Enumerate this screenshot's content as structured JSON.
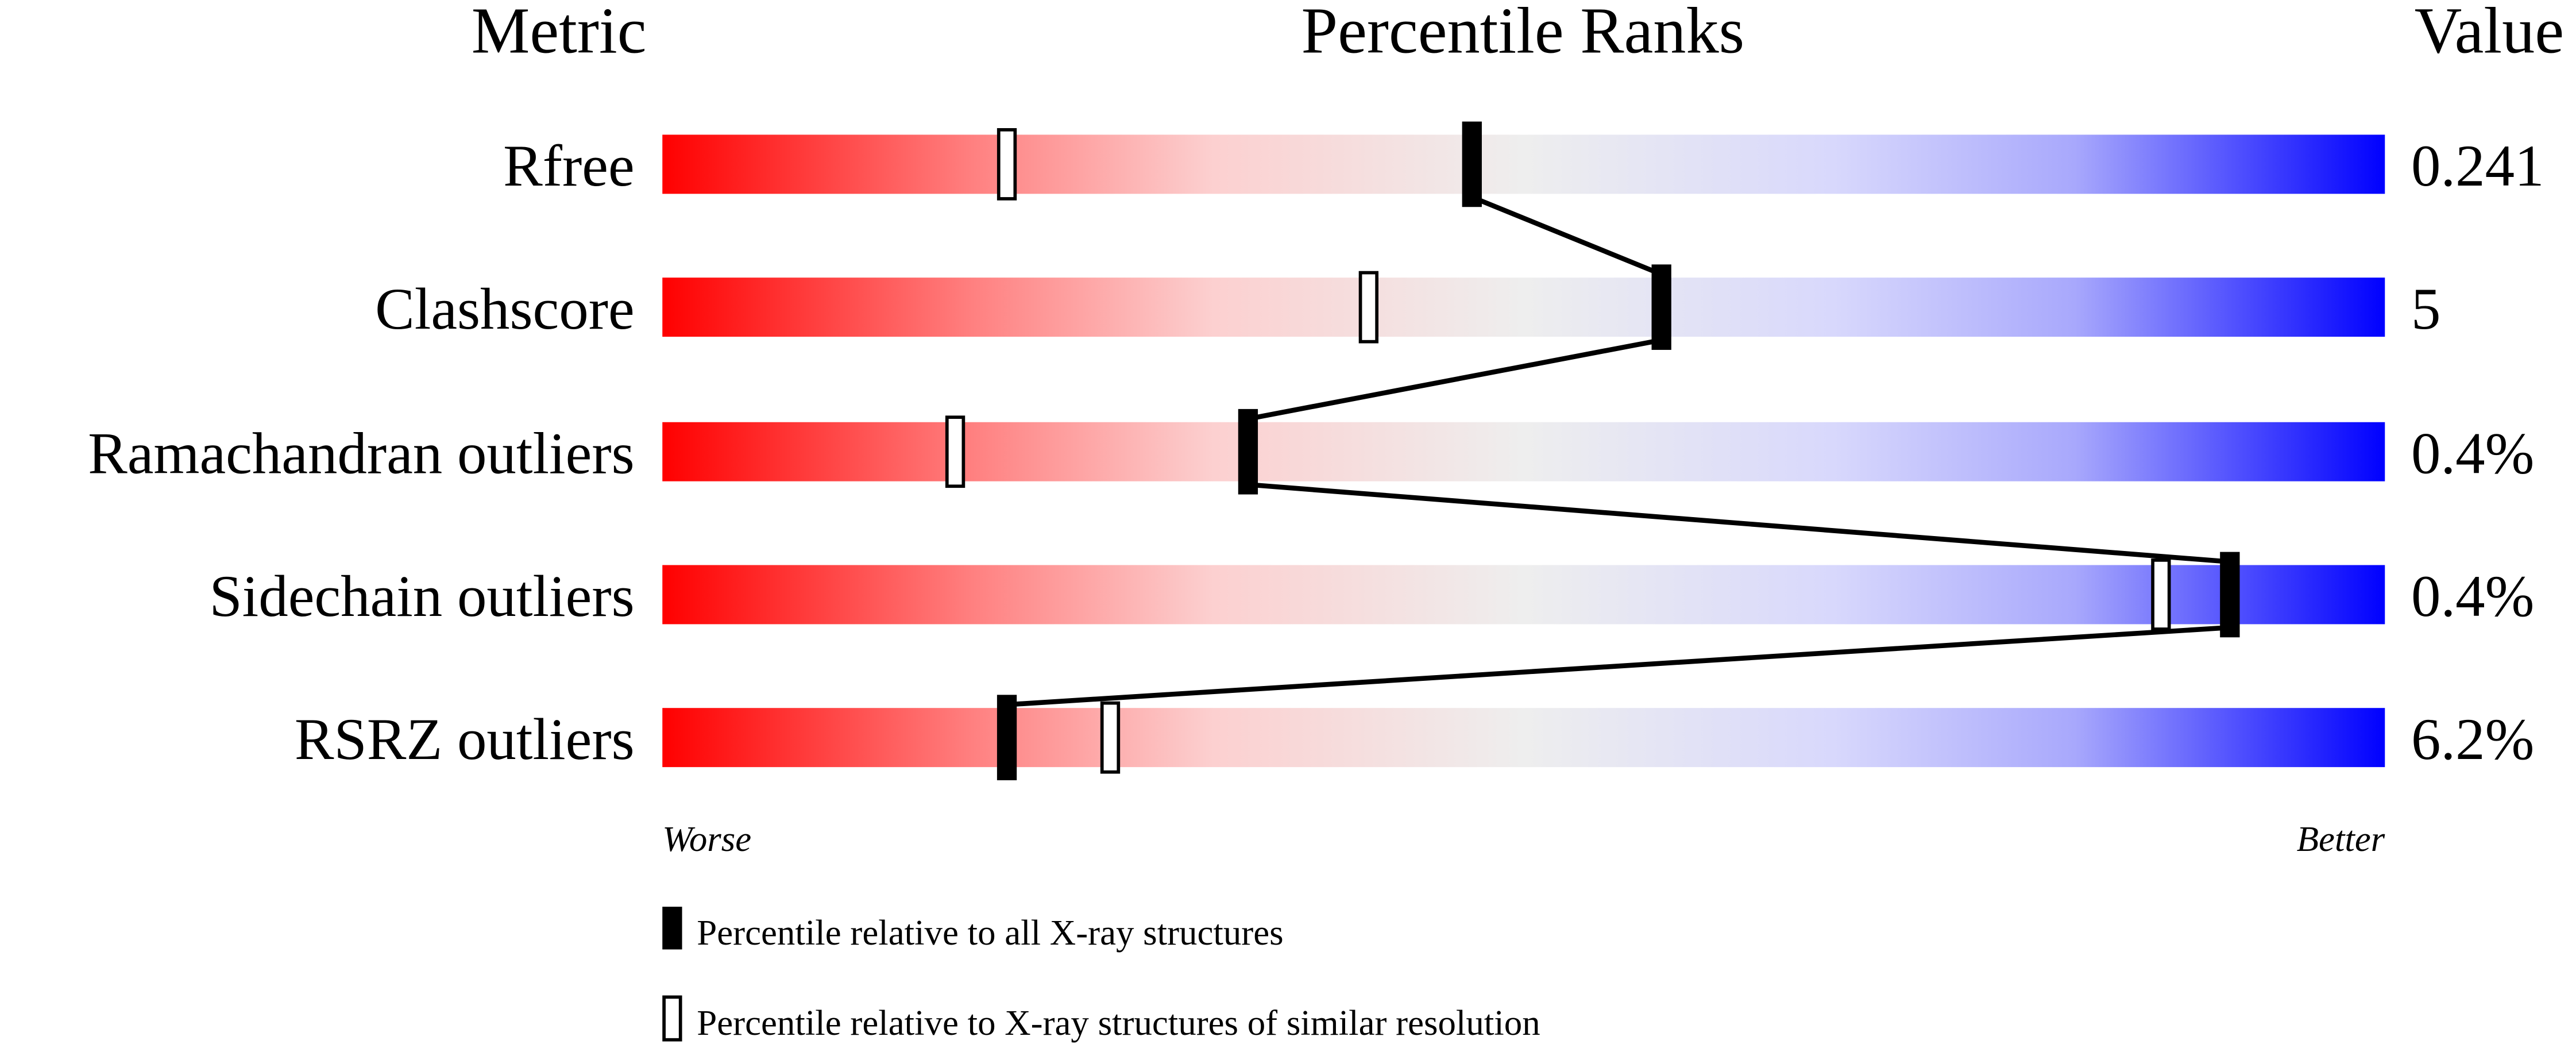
{
  "chart_data": {
    "type": "percentile-bar",
    "headers": {
      "metric": "Metric",
      "ranks": "Percentile Ranks",
      "value": "Value"
    },
    "xlim": [
      0,
      100
    ],
    "axis_labels": {
      "left": "Worse",
      "right": "Better"
    },
    "colors": {
      "worse": "#ff0000",
      "mid": "#eeeeee",
      "better": "#0000ff"
    },
    "rows": [
      {
        "metric": "Rfree",
        "value": "0.241",
        "percentile_all": 47,
        "percentile_similar": 20
      },
      {
        "metric": "Clashscore",
        "value": "5",
        "percentile_all": 58,
        "percentile_similar": 41
      },
      {
        "metric": "Ramachandran outliers",
        "value": "0.4%",
        "percentile_all": 34,
        "percentile_similar": 17
      },
      {
        "metric": "Sidechain outliers",
        "value": "0.4%",
        "percentile_all": 91,
        "percentile_similar": 87
      },
      {
        "metric": "RSRZ outliers",
        "value": "6.2%",
        "percentile_all": 20,
        "percentile_similar": 26
      }
    ],
    "legend": [
      {
        "marker": "filled",
        "label": "Percentile relative to all X-ray structures"
      },
      {
        "marker": "open",
        "label": "Percentile relative to X-ray structures of similar resolution"
      }
    ]
  }
}
